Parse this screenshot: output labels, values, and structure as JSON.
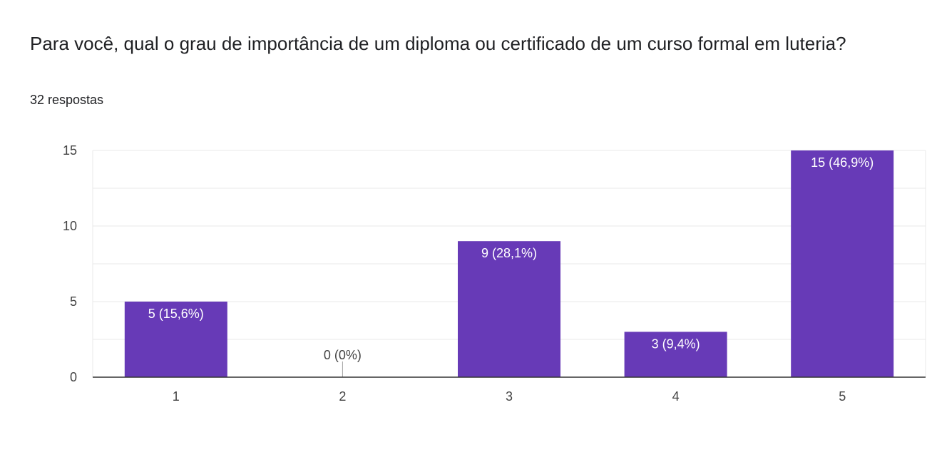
{
  "question": {
    "title": "Para você, qual o grau de importância de um diploma ou certificado de um curso formal em luteria?",
    "responses": "32 respostas"
  },
  "colors": {
    "bar": "#673ab7",
    "grid": "#e8e8e8",
    "axis": "#333333",
    "label_inside": "#ffffff",
    "label_outside": "#444444"
  },
  "chart_data": {
    "type": "bar",
    "categories": [
      "1",
      "2",
      "3",
      "4",
      "5"
    ],
    "values": [
      5,
      0,
      9,
      3,
      15
    ],
    "data_labels": [
      "5 (15,6%)",
      "0 (0%)",
      "9 (28,1%)",
      "3 (9,4%)",
      "15 (46,9%)"
    ],
    "yticks": [
      0,
      5,
      10,
      15
    ],
    "ylim": [
      0,
      15
    ],
    "grid": true,
    "legend": "none"
  }
}
